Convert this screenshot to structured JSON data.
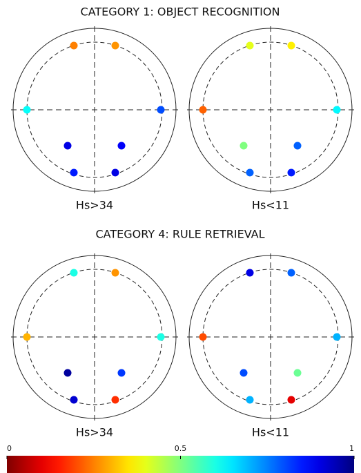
{
  "titles": [
    "CATEGORY 1: OBJECT RECOGNITION",
    "CATEGORY 4: RULE RETRIEVAL"
  ],
  "chart_data": [
    {
      "type": "topoplot",
      "label": "Hs>34",
      "colormap": "jet_r",
      "clim": [
        0,
        1
      ],
      "values": [
        0.25,
        0.27,
        0.62,
        0.8,
        0.9,
        0.88,
        0.85,
        0.9
      ]
    },
    {
      "type": "topoplot",
      "label": "Hs<11",
      "colormap": "jet_r",
      "clim": [
        0,
        1
      ],
      "values": [
        0.4,
        0.36,
        0.22,
        0.63,
        0.5,
        0.78,
        0.78,
        0.85
      ]
    },
    {
      "type": "topoplot",
      "label": "Hs>34",
      "colormap": "jet_r",
      "clim": [
        0,
        1
      ],
      "values": [
        0.6,
        0.27,
        0.3,
        0.6,
        0.97,
        0.82,
        0.92,
        0.17
      ]
    },
    {
      "type": "topoplot",
      "label": "Hs<11",
      "colormap": "jet_r",
      "clim": [
        0,
        1
      ],
      "values": [
        0.9,
        0.78,
        0.2,
        0.7,
        0.8,
        0.52,
        0.7,
        0.1
      ]
    }
  ],
  "colorbar": {
    "lim": [
      0,
      1
    ],
    "ticks": [
      0,
      0.5,
      1
    ]
  }
}
